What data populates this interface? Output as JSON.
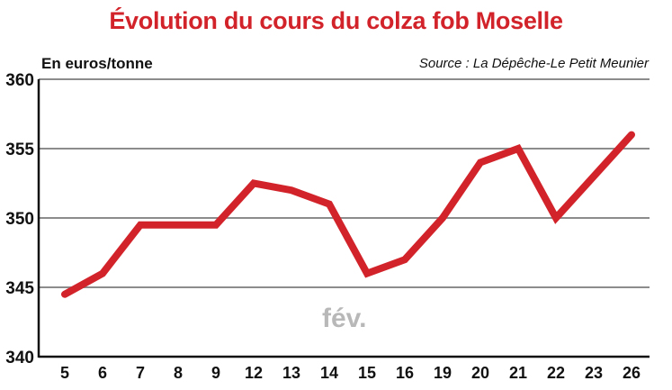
{
  "chart_data": {
    "type": "line",
    "title": "Évolution du cours du colza fob Moselle",
    "ylabel": "En euros/tonne",
    "source": "Source : La Dépêche-Le Petit Meunier",
    "month_label": "fév.",
    "categories": [
      "5",
      "6",
      "7",
      "8",
      "9",
      "12",
      "13",
      "14",
      "15",
      "16",
      "19",
      "20",
      "21",
      "22",
      "23",
      "26"
    ],
    "series": [
      {
        "values": [
          344.5,
          346,
          349.5,
          349.5,
          349.5,
          352.5,
          352,
          351,
          346,
          347,
          350,
          354,
          355,
          350,
          353,
          356
        ]
      }
    ],
    "ylim": [
      340,
      360
    ],
    "yticks": [
      340,
      345,
      350,
      355,
      360
    ],
    "grid": true,
    "line_color": "#d2232a",
    "grid_color": "#8c8c8c"
  }
}
